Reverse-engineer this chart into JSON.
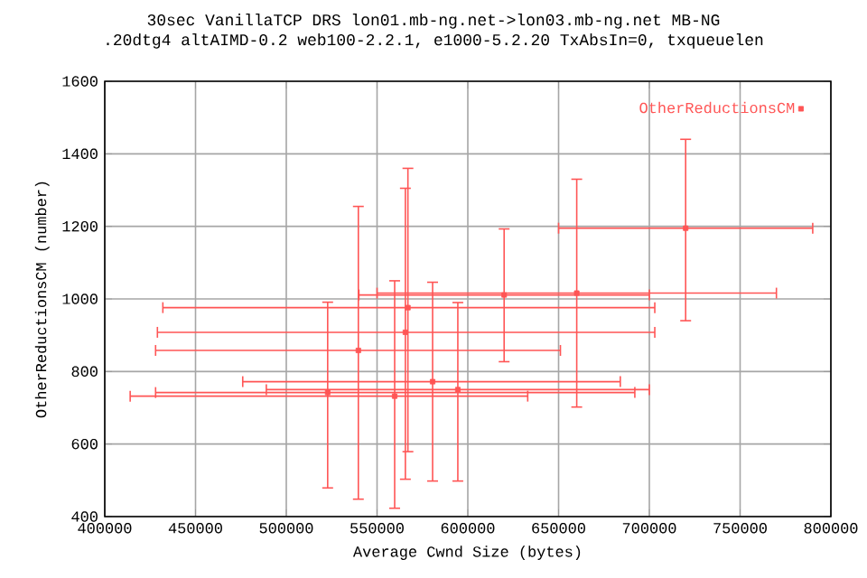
{
  "chart_data": {
    "type": "scatter",
    "title": "30sec VanillaTCP DRS lon01.mb-ng.net->lon03.mb-ng.net MB-NG",
    "subtitle": ".20dtg4 altAIMD-0.2 web100-2.2.1, e1000-5.2.20 TxAbsIn=0, txqueuelen",
    "xlabel": "Average Cwnd Size (bytes)",
    "ylabel": "OtherReductionsCM (number)",
    "xlim": [
      400000,
      800000
    ],
    "xticks": [
      400000,
      450000,
      500000,
      550000,
      600000,
      650000,
      700000,
      750000,
      800000
    ],
    "ylim": [
      400,
      1600
    ],
    "yticks": [
      400,
      600,
      800,
      1000,
      1200,
      1400,
      1600
    ],
    "grid": true,
    "legend": "top right",
    "marker": "square",
    "series": [
      {
        "name": "OtherReductionsCM",
        "color": "#ff5555",
        "x": [
          720000,
          660000,
          620000,
          567000,
          565600,
          539700,
          580600,
          594500,
          522800,
          559700
        ],
        "values": [
          1195,
          1016,
          1011,
          976,
          908,
          858,
          772,
          750,
          742,
          732
        ],
        "xerrors": [
          [
            650000,
            790000
          ],
          [
            550000,
            770000
          ],
          [
            540000,
            700000
          ],
          [
            432000,
            703000
          ],
          [
            429000,
            703000
          ],
          [
            428000,
            651000
          ],
          [
            476000,
            684000
          ],
          [
            489000,
            700000
          ],
          [
            428000,
            692000
          ],
          [
            414000,
            633000
          ]
        ],
        "errors": [
          [
            940,
            1440
          ],
          [
            702,
            1330
          ],
          [
            827,
            1193
          ],
          [
            579,
            1360
          ],
          [
            503,
            1305
          ],
          [
            448,
            1255
          ],
          [
            498,
            1046
          ],
          [
            498,
            990
          ],
          [
            479,
            991
          ],
          [
            423,
            1050
          ]
        ]
      }
    ]
  }
}
